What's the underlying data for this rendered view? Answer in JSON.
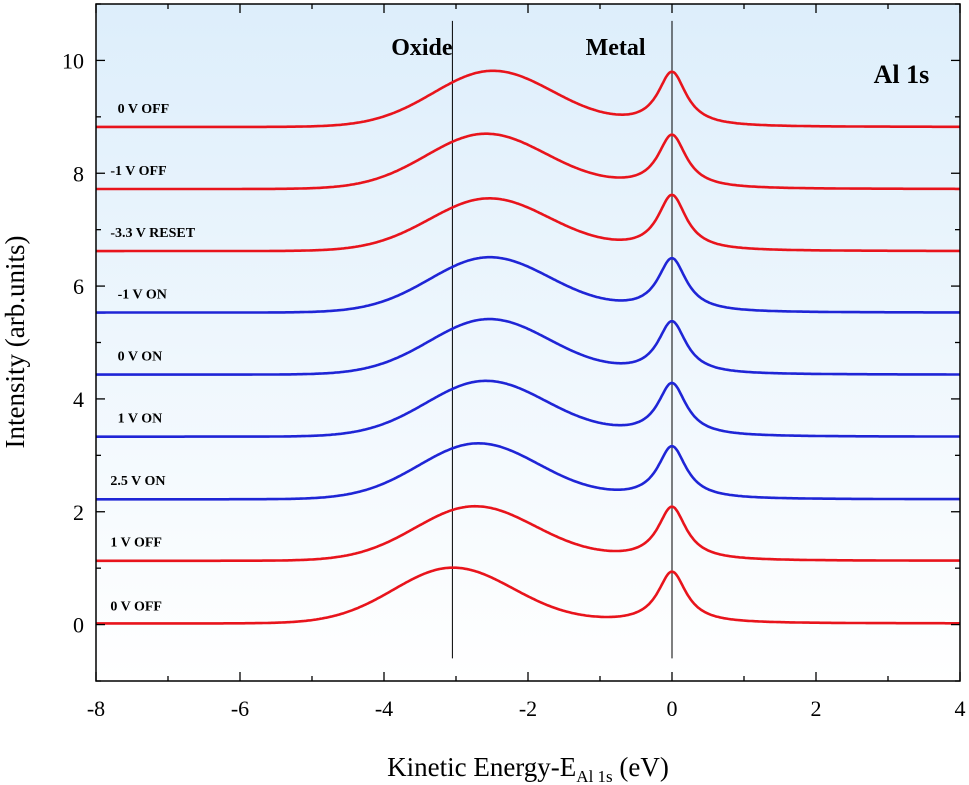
{
  "chart_data": {
    "type": "line",
    "xlabel_main": "Kinetic Energy-E",
    "xlabel_sub": "Al 1s",
    "xlabel_unit": " (eV)",
    "ylabel": "Intensity (arb.units)",
    "xlim": [
      -8,
      4
    ],
    "ylim": [
      -1,
      11
    ],
    "xticks": [
      -8,
      -6,
      -4,
      -2,
      0,
      2,
      4
    ],
    "yticks": [
      0,
      2,
      4,
      6,
      8,
      10
    ],
    "xtick_labels": [
      "-8",
      "-6",
      "-4",
      "-2",
      "0",
      "2",
      "4"
    ],
    "ytick_labels": [
      "0",
      "2",
      "4",
      "6",
      "8",
      "10"
    ],
    "grid": false,
    "background": "light blue gradient",
    "annotations": [
      {
        "text": "Oxide",
        "x": -3.9,
        "y": 10.1
      },
      {
        "text": "Metal",
        "x": -1.2,
        "y": 10.1
      },
      {
        "text": "Al 1s",
        "x": 2.8,
        "y": 9.6
      }
    ],
    "reference_lines_x": [
      -3.05,
      0
    ],
    "series": [
      {
        "name": "0 V OFF",
        "color": "#e8141c",
        "baseline": 0.02,
        "oxide_center": -3.05,
        "oxide_height": 1.0,
        "metal_height": 0.93,
        "label_x": -7.8,
        "label_y": 0.25
      },
      {
        "name": "1 V OFF",
        "color": "#e8141c",
        "baseline": 1.13,
        "oxide_center": -2.75,
        "oxide_height": 2.08,
        "metal_height": 2.07,
        "label_x": -7.8,
        "label_y": 1.38
      },
      {
        "name": "2.5 V ON",
        "color": "#1f25d6",
        "baseline": 2.22,
        "oxide_center": -2.7,
        "oxide_height": 3.2,
        "metal_height": 3.15,
        "label_x": -7.8,
        "label_y": 2.47
      },
      {
        "name": "1 V ON",
        "color": "#1f25d6",
        "baseline": 3.33,
        "oxide_center": -2.6,
        "oxide_height": 4.3,
        "metal_height": 4.26,
        "label_x": -7.7,
        "label_y": 3.58
      },
      {
        "name": "0 V ON",
        "color": "#1f25d6",
        "baseline": 4.43,
        "oxide_center": -2.55,
        "oxide_height": 5.4,
        "metal_height": 5.36,
        "label_x": -7.7,
        "label_y": 4.68
      },
      {
        "name": "-1 V ON",
        "color": "#1f25d6",
        "baseline": 5.53,
        "oxide_center": -2.55,
        "oxide_height": 6.49,
        "metal_height": 6.47,
        "label_x": -7.7,
        "label_y": 5.78
      },
      {
        "name": "-3.3 V RESET",
        "color": "#e8141c",
        "baseline": 6.62,
        "oxide_center": -2.55,
        "oxide_height": 7.54,
        "metal_height": 7.6,
        "label_x": -7.8,
        "label_y": 6.87
      },
      {
        "name": "-1 V OFF",
        "color": "#e8141c",
        "baseline": 7.72,
        "oxide_center": -2.6,
        "oxide_height": 8.68,
        "metal_height": 8.66,
        "label_x": -7.8,
        "label_y": 7.97
      },
      {
        "name": "0 V OFF",
        "color": "#e8141c",
        "baseline": 8.82,
        "oxide_center": -2.5,
        "oxide_height": 9.8,
        "metal_height": 9.78,
        "label_x": -7.7,
        "label_y": 9.07
      }
    ]
  }
}
